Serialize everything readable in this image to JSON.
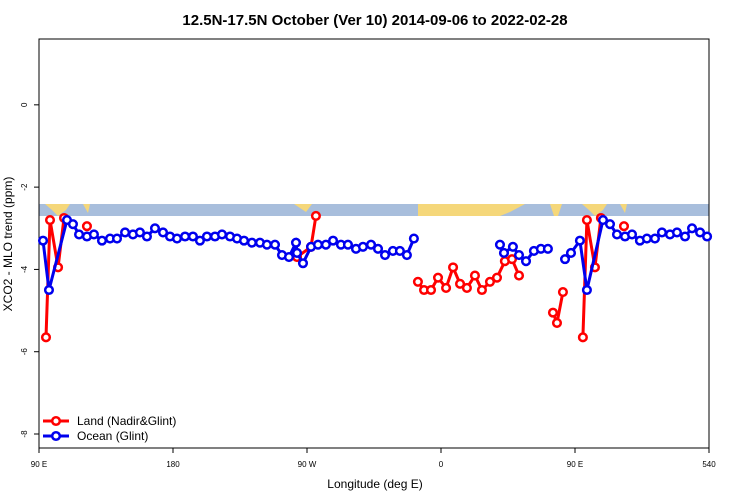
{
  "chart_data": {
    "type": "line",
    "title": "12.5N-17.5N October (Ver 10)   2014-09-06 to 2022-02-28",
    "xlabel": "Longitude (deg E)",
    "ylabel": "XCO2 - MLO trend (ppm)",
    "xlim": [
      90,
      540
    ],
    "xticks": [
      {
        "value": 90,
        "label": "90 E"
      },
      180,
      {
        "value": 270,
        "label": "90 W"
      },
      {
        "value": 360,
        "label": "0"
      },
      {
        "value": 450,
        "label": "90 E"
      },
      540
    ],
    "ylim": [
      -8.34,
      1.6
    ],
    "yticks": [
      -8,
      -6,
      -4,
      -2,
      0
    ],
    "legend": "bottom-left",
    "series": [
      {
        "name": "Land (Nadir&Glint)",
        "color": "#ff0000",
        "x": [
          94.7,
          97.4,
          102.8,
          106.8,
          null,
          122.2,
          null,
          263.3,
          272.7,
          276.0,
          null,
          344.5,
          348.6,
          353.3,
          358.0,
          363.4,
          368.1,
          372.8,
          377.4,
          382.8,
          387.5,
          392.9,
          397.6,
          402.9,
          407.7,
          412.4,
          null,
          435.2,
          437.9,
          441.9,
          null,
          455.3,
          458.0,
          463.4,
          467.4,
          null,
          482.9
        ],
        "values": [
          -5.65,
          -2.8,
          -3.95,
          -2.75,
          null,
          -2.95,
          null,
          -3.7,
          -3.45,
          -2.7,
          null,
          -4.3,
          -4.5,
          -4.5,
          -4.2,
          -4.45,
          -3.95,
          -4.35,
          -4.45,
          -4.15,
          -4.5,
          -4.3,
          -4.2,
          -3.8,
          -3.75,
          -4.15,
          null,
          -5.05,
          -5.3,
          -4.55,
          null,
          -5.65,
          -2.8,
          -3.95,
          -2.75,
          null,
          -2.95
        ]
      },
      {
        "name": "Ocean (Glint)",
        "color": "#0000ee",
        "x": [
          92.7,
          96.7,
          108.8,
          112.8,
          116.9,
          122.2,
          126.9,
          132.3,
          137.7,
          142.4,
          147.8,
          153.1,
          157.8,
          162.5,
          167.9,
          173.3,
          178.0,
          182.7,
          188.1,
          193.4,
          198.1,
          202.8,
          208.2,
          212.9,
          218.3,
          223.0,
          227.7,
          233.0,
          238.4,
          243.1,
          248.5,
          253.2,
          257.9,
          262.6,
          263.3,
          267.3,
          272.7,
          277.4,
          282.7,
          287.5,
          292.8,
          297.5,
          302.9,
          307.6,
          313.0,
          317.7,
          322.4,
          327.7,
          332.4,
          337.1,
          341.8,
          null,
          399.6,
          402.3,
          408.3,
          412.4,
          417.1,
          422.4,
          427.1,
          431.8,
          null,
          443.3,
          447.3,
          453.3,
          458.0,
          468.8,
          473.5,
          478.2,
          483.6,
          488.3,
          493.6,
          498.3,
          503.7,
          508.4,
          513.8,
          518.5,
          523.9,
          528.6,
          534.0,
          538.7
        ],
        "values": [
          -3.3,
          -4.5,
          -2.8,
          -2.9,
          -3.15,
          -3.2,
          -3.15,
          -3.3,
          -3.25,
          -3.25,
          -3.1,
          -3.15,
          -3.1,
          -3.2,
          -3.0,
          -3.1,
          -3.2,
          -3.25,
          -3.2,
          -3.2,
          -3.3,
          -3.2,
          -3.2,
          -3.15,
          -3.2,
          -3.25,
          -3.3,
          -3.35,
          -3.35,
          -3.4,
          -3.4,
          -3.65,
          -3.7,
          -3.35,
          -3.6,
          -3.85,
          -3.45,
          -3.4,
          -3.4,
          -3.3,
          -3.4,
          -3.4,
          -3.5,
          -3.45,
          -3.4,
          -3.5,
          -3.65,
          -3.55,
          -3.55,
          -3.65,
          -3.25,
          null,
          -3.4,
          -3.6,
          -3.45,
          -3.65,
          -3.8,
          -3.55,
          -3.5,
          -3.5,
          null,
          -3.75,
          -3.6,
          -3.3,
          -4.5,
          -2.8,
          -2.9,
          -3.15,
          -3.2,
          -3.15,
          -3.3,
          -3.25,
          -3.25,
          -3.1,
          -3.15,
          -3.1,
          -3.2,
          -3.0,
          -3.1,
          -3.2
        ]
      }
    ]
  }
}
